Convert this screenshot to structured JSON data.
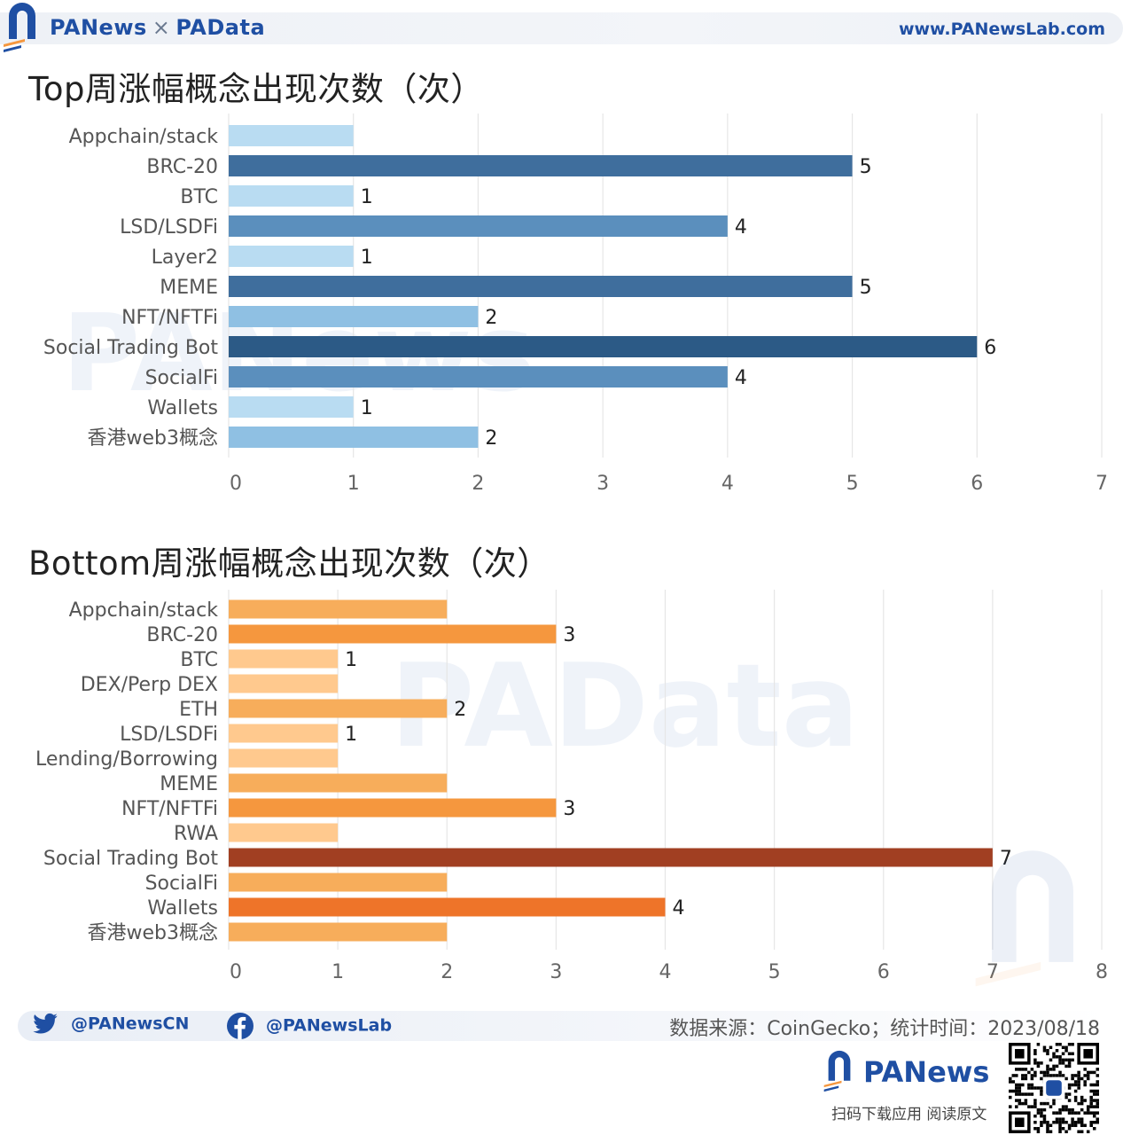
{
  "header": {
    "brand_left": "PANews",
    "brand_sep": "×",
    "brand_right": "PAData",
    "url": "www.PANewsLab.com"
  },
  "colors": {
    "brand": "#1f4fa3",
    "blue_1": "#b9dcf2",
    "blue_2": "#8fc0e3",
    "blue_4": "#5b8fbd",
    "blue_5": "#3f6e9d",
    "blue_6": "#2c5a86",
    "orange_1": "#ffc98e",
    "orange_2": "#f7ad5b",
    "orange_3": "#f5973e",
    "orange_4": "#ee7429",
    "orange_7": "#a13f22"
  },
  "chart_data": [
    {
      "type": "bar",
      "orientation": "horizontal",
      "title": "Top周涨幅概念出现次数（次）",
      "categories": [
        "Appchain/stack",
        "BRC-20",
        "BTC",
        "LSD/LSDFi",
        "Layer2",
        "MEME",
        "NFT/NFTFi",
        "Social Trading Bot",
        "SocialFi",
        "Wallets",
        "香港web3概念"
      ],
      "values": [
        1,
        5,
        1,
        4,
        1,
        5,
        2,
        6,
        4,
        1,
        2
      ],
      "data_labels": [
        "",
        "5",
        "1",
        "4",
        "1",
        "5",
        "2",
        "6",
        "4",
        "1",
        "2"
      ],
      "xlim": [
        0,
        7
      ],
      "xticks": [
        "0",
        "1",
        "2",
        "3",
        "4",
        "5",
        "6",
        "7"
      ],
      "grid": true,
      "palette": "blues"
    },
    {
      "type": "bar",
      "orientation": "horizontal",
      "title": "Bottom周涨幅概念出现次数（次）",
      "categories": [
        "Appchain/stack",
        "BRC-20",
        "BTC",
        "DEX/Perp DEX",
        "ETH",
        "LSD/LSDFi",
        "Lending/Borrowing",
        "MEME",
        "NFT/NFTFi",
        "RWA",
        "Social Trading Bot",
        "SocialFi",
        "Wallets",
        "香港web3概念"
      ],
      "values": [
        2,
        3,
        1,
        1,
        2,
        1,
        1,
        2,
        3,
        1,
        7,
        2,
        4,
        2
      ],
      "data_labels": [
        "",
        "3",
        "1",
        "",
        "2",
        "1",
        "",
        "",
        "3",
        "",
        "7",
        "",
        "4",
        ""
      ],
      "xlim": [
        0,
        8
      ],
      "xticks": [
        "0",
        "1",
        "2",
        "3",
        "4",
        "5",
        "6",
        "7",
        "8"
      ],
      "grid": true,
      "palette": "oranges"
    }
  ],
  "footer": {
    "twitter": "@PANewsCN",
    "facebook": "@PANewsLab",
    "source": "数据来源：CoinGecko；统计时间：2023/08/18",
    "brand": "PANews",
    "caption": "扫码下载应用  阅读原文"
  }
}
